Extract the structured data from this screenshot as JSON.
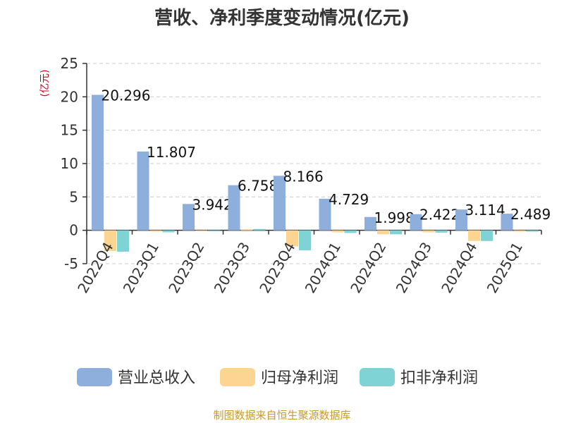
{
  "chart_data": {
    "type": "bar",
    "title": "营收、净利季度变动情况(亿元)",
    "ylabel": "(亿元)",
    "ylim": [
      -5,
      25
    ],
    "yticks": [
      25,
      20,
      15,
      10,
      5,
      0,
      -5
    ],
    "grid": true,
    "legend_position": "bottom",
    "categories": [
      "2022Q4",
      "2023Q1",
      "2023Q2",
      "2023Q3",
      "2023Q4",
      "2024Q1",
      "2024Q2",
      "2024Q3",
      "2024Q4",
      "2025Q1"
    ],
    "series": [
      {
        "name": "营业总收入",
        "color": "#8eaedc",
        "values": [
          20.296,
          11.807,
          3.942,
          6.758,
          8.166,
          4.729,
          1.998,
          2.422,
          3.114,
          2.489
        ]
      },
      {
        "name": "归母净利润",
        "color": "#fdd593",
        "values": [
          -3.1,
          -0.2,
          -0.05,
          0.15,
          -2.4,
          -0.3,
          -0.6,
          -0.3,
          -1.6,
          -0.2
        ]
      },
      {
        "name": "扣非净利润",
        "color": "#7fd3d5",
        "values": [
          -3.2,
          -0.3,
          -0.05,
          0.2,
          -3.0,
          -0.4,
          -0.6,
          -0.35,
          -1.6,
          -0.2
        ]
      }
    ],
    "data_labels": [
      "20.296",
      "11.807",
      "3.942",
      "6.758",
      "8.166",
      "4.729",
      "1.998",
      "2.422",
      "3.114",
      "2.489"
    ]
  },
  "source": "制图数据来自恒生聚源数据库"
}
